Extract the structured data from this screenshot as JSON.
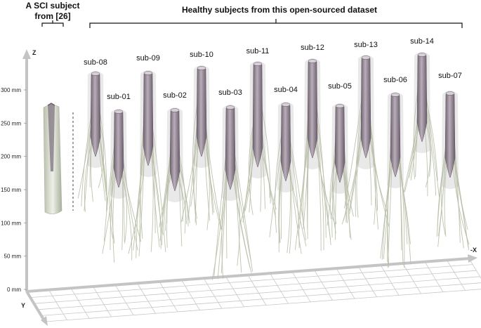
{
  "headers": {
    "sci_line1": "A SCI subject",
    "sci_line2": "from [26]",
    "healthy": "Healthy subjects from this open-sourced dataset"
  },
  "axes": {
    "z": "Z",
    "y": "Y",
    "x": "-X",
    "z_ticks": [
      {
        "label": "300 mm",
        "mm": 300
      },
      {
        "label": "250 mm",
        "mm": 250
      },
      {
        "label": "200 mm",
        "mm": 200
      },
      {
        "label": "150 mm",
        "mm": 150
      },
      {
        "label": "100 mm",
        "mm": 100
      },
      {
        "label": "50 mm",
        "mm": 50
      },
      {
        "label": "0 mm",
        "mm": 0
      }
    ]
  },
  "subjects": [
    {
      "label": "sub-08"
    },
    {
      "label": "sub-01"
    },
    {
      "label": "sub-09"
    },
    {
      "label": "sub-02"
    },
    {
      "label": "sub-10"
    },
    {
      "label": "sub-03"
    },
    {
      "label": "sub-11"
    },
    {
      "label": "sub-04"
    },
    {
      "label": "sub-12"
    },
    {
      "label": "sub-05"
    },
    {
      "label": "sub-13"
    },
    {
      "label": "sub-06"
    },
    {
      "label": "sub-14"
    },
    {
      "label": "sub-07"
    }
  ],
  "colors": {
    "cord": "#8d7f8c",
    "cord_light": "#b9adb8",
    "sheath": "#d7d7d7",
    "roots": "#b7bea6",
    "axis": "#c4c4c4",
    "grid": "#c8c8c8"
  }
}
